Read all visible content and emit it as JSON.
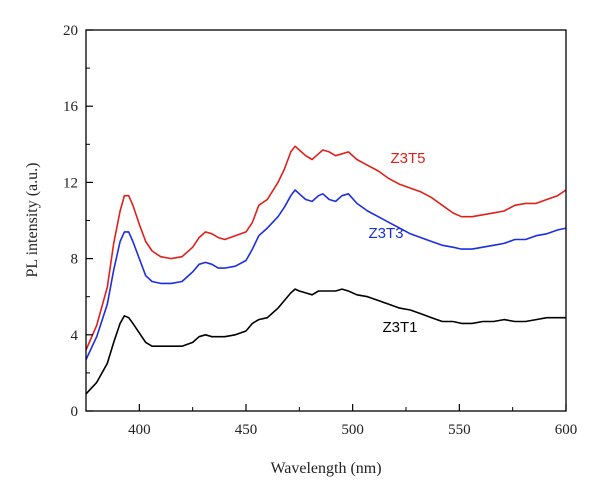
{
  "chart_data": {
    "type": "line",
    "title": "",
    "xlabel": "Wavelength (nm)",
    "ylabel": "PL intensity (a.u.)",
    "xlim": [
      375,
      600
    ],
    "ylim": [
      0,
      20
    ],
    "xticks": [
      400,
      450,
      500,
      550,
      600
    ],
    "yticks": [
      0,
      4,
      8,
      12,
      16,
      20
    ],
    "grid": false,
    "legend": "inline labels",
    "series": [
      {
        "name": "Z3T5",
        "color": "#e0201a",
        "x": [
          375,
          380,
          385,
          388,
          391,
          393,
          395,
          397,
          400,
          403,
          406,
          410,
          415,
          420,
          425,
          428,
          431,
          434,
          437,
          440,
          445,
          450,
          453,
          456,
          460,
          465,
          468,
          471,
          473,
          475,
          478,
          481,
          484,
          486,
          489,
          492,
          495,
          498,
          502,
          507,
          512,
          517,
          522,
          527,
          532,
          537,
          542,
          547,
          551,
          556,
          561,
          566,
          571,
          576,
          581,
          586,
          591,
          596,
          600
        ],
        "y": [
          3.2,
          4.5,
          6.5,
          8.8,
          10.5,
          11.3,
          11.3,
          10.8,
          9.8,
          8.9,
          8.4,
          8.1,
          8.0,
          8.1,
          8.6,
          9.1,
          9.4,
          9.3,
          9.1,
          9.0,
          9.2,
          9.4,
          9.9,
          10.8,
          11.1,
          12.0,
          12.7,
          13.6,
          13.9,
          13.7,
          13.4,
          13.2,
          13.5,
          13.7,
          13.6,
          13.4,
          13.5,
          13.6,
          13.2,
          12.9,
          12.6,
          12.2,
          11.9,
          11.7,
          11.5,
          11.2,
          10.8,
          10.4,
          10.2,
          10.2,
          10.3,
          10.4,
          10.5,
          10.8,
          10.9,
          10.9,
          11.1,
          11.3,
          11.6
        ]
      },
      {
        "name": "Z3T3",
        "color": "#1c2ee0",
        "x": [
          375,
          380,
          385,
          388,
          391,
          393,
          395,
          397,
          400,
          403,
          406,
          410,
          415,
          420,
          425,
          428,
          431,
          434,
          437,
          440,
          445,
          450,
          453,
          456,
          460,
          465,
          468,
          471,
          473,
          475,
          478,
          481,
          484,
          486,
          489,
          492,
          495,
          498,
          502,
          507,
          512,
          517,
          522,
          527,
          532,
          537,
          542,
          547,
          551,
          556,
          561,
          566,
          571,
          576,
          581,
          586,
          591,
          596,
          600
        ],
        "y": [
          2.7,
          3.9,
          5.6,
          7.4,
          8.9,
          9.4,
          9.4,
          8.9,
          8.0,
          7.1,
          6.8,
          6.7,
          6.7,
          6.8,
          7.3,
          7.7,
          7.8,
          7.7,
          7.5,
          7.5,
          7.6,
          7.9,
          8.5,
          9.2,
          9.6,
          10.2,
          10.7,
          11.3,
          11.6,
          11.4,
          11.1,
          11.0,
          11.3,
          11.4,
          11.1,
          11.0,
          11.3,
          11.4,
          10.9,
          10.5,
          10.2,
          9.9,
          9.6,
          9.3,
          9.1,
          8.9,
          8.7,
          8.6,
          8.5,
          8.5,
          8.6,
          8.7,
          8.8,
          9.0,
          9.0,
          9.2,
          9.3,
          9.5,
          9.6
        ]
      },
      {
        "name": "Z3T1",
        "color": "#000000",
        "x": [
          375,
          380,
          385,
          388,
          391,
          393,
          395,
          397,
          400,
          403,
          406,
          410,
          415,
          420,
          425,
          428,
          431,
          434,
          437,
          440,
          445,
          450,
          453,
          456,
          460,
          465,
          468,
          471,
          473,
          475,
          478,
          481,
          484,
          486,
          489,
          492,
          495,
          498,
          502,
          507,
          512,
          517,
          522,
          527,
          532,
          537,
          542,
          547,
          551,
          556,
          561,
          566,
          571,
          576,
          581,
          586,
          591,
          596,
          600
        ],
        "y": [
          0.9,
          1.5,
          2.5,
          3.6,
          4.6,
          5.0,
          4.9,
          4.6,
          4.1,
          3.6,
          3.4,
          3.4,
          3.4,
          3.4,
          3.6,
          3.9,
          4.0,
          3.9,
          3.9,
          3.9,
          4.0,
          4.2,
          4.6,
          4.8,
          4.9,
          5.4,
          5.8,
          6.2,
          6.4,
          6.3,
          6.2,
          6.1,
          6.3,
          6.3,
          6.3,
          6.3,
          6.4,
          6.3,
          6.1,
          6.0,
          5.8,
          5.6,
          5.4,
          5.3,
          5.1,
          4.9,
          4.7,
          4.7,
          4.6,
          4.6,
          4.7,
          4.7,
          4.8,
          4.7,
          4.7,
          4.8,
          4.9,
          4.9,
          4.9
        ]
      }
    ],
    "annotations": [
      {
        "text": "Z3T5",
        "color": "#e0201a"
      },
      {
        "text": "Z3T3",
        "color": "#1c2ee0"
      },
      {
        "text": "Z3T1",
        "color": "#000000"
      }
    ]
  }
}
